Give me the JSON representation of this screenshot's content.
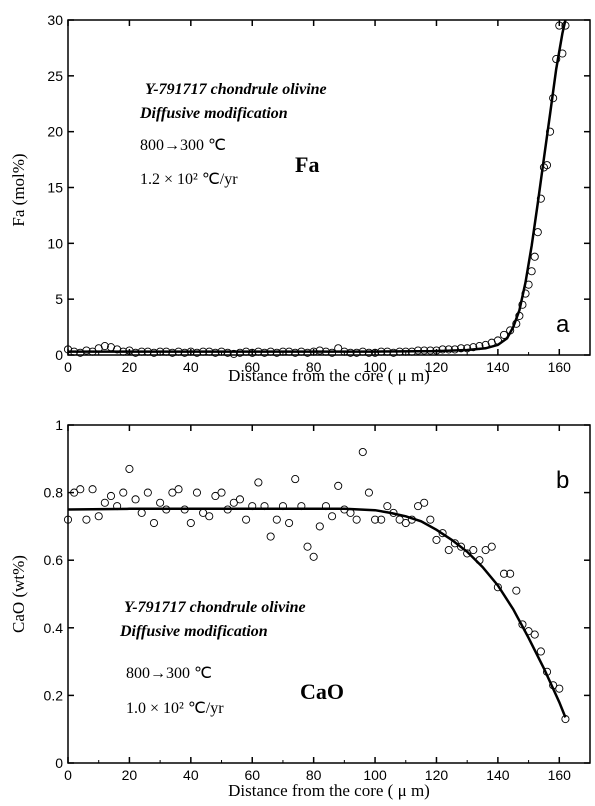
{
  "chart_data": [
    {
      "type": "scatter",
      "panel_letter": "a",
      "xlabel": "Distance from the core ( μ m)",
      "ylabel": "Fa (mol%)",
      "xlim": [
        0,
        170
      ],
      "ylim": [
        0,
        30
      ],
      "x_ticks": [
        "0",
        "20",
        "40",
        "60",
        "80",
        "100",
        "120",
        "140",
        "160"
      ],
      "y_ticks": [
        "0",
        "5",
        "10",
        "15",
        "20",
        "25",
        "30"
      ],
      "annotation": {
        "line1": "Y-791717 chondrule olivine",
        "line2": "Diffusive modification",
        "line3": "800→300 ℃",
        "line4": "1.2 × 10² ℃/yr",
        "species": "Fa"
      },
      "series": [
        {
          "kind": "model-curve",
          "x": [
            0,
            20,
            40,
            60,
            80,
            100,
            120,
            130,
            136,
            140,
            143,
            145,
            147,
            149,
            151,
            153,
            155,
            157,
            159,
            161,
            162
          ],
          "y": [
            0.3,
            0.3,
            0.3,
            0.3,
            0.3,
            0.3,
            0.35,
            0.45,
            0.6,
            0.9,
            1.5,
            2.5,
            4.0,
            6.5,
            9.8,
            13.6,
            17.6,
            21.6,
            25.6,
            28.8,
            30.0
          ]
        },
        {
          "kind": "measured-points",
          "x": [
            0,
            2,
            4,
            6,
            8,
            10,
            12,
            14,
            16,
            18,
            20,
            22,
            24,
            26,
            28,
            30,
            32,
            34,
            36,
            38,
            40,
            42,
            44,
            46,
            48,
            50,
            52,
            54,
            56,
            58,
            60,
            62,
            64,
            66,
            68,
            70,
            72,
            74,
            76,
            78,
            80,
            82,
            84,
            86,
            88,
            90,
            92,
            94,
            96,
            98,
            100,
            102,
            104,
            106,
            108,
            110,
            112,
            114,
            116,
            118,
            120,
            122,
            124,
            126,
            128,
            130,
            132,
            134,
            136,
            138,
            140,
            142,
            144,
            146,
            147,
            148,
            149,
            150,
            151,
            152,
            153,
            154,
            155,
            156,
            157,
            158,
            159,
            160,
            161,
            162
          ],
          "y": [
            0.5,
            0.3,
            0.2,
            0.4,
            0.3,
            0.6,
            0.8,
            0.7,
            0.5,
            0.3,
            0.4,
            0.2,
            0.3,
            0.3,
            0.2,
            0.3,
            0.3,
            0.2,
            0.3,
            0.2,
            0.3,
            0.2,
            0.3,
            0.3,
            0.2,
            0.3,
            0.2,
            0.1,
            0.2,
            0.3,
            0.2,
            0.3,
            0.2,
            0.3,
            0.2,
            0.3,
            0.3,
            0.2,
            0.3,
            0.2,
            0.3,
            0.4,
            0.3,
            0.2,
            0.6,
            0.3,
            0.2,
            0.2,
            0.3,
            0.2,
            0.2,
            0.3,
            0.3,
            0.2,
            0.3,
            0.3,
            0.3,
            0.4,
            0.4,
            0.4,
            0.4,
            0.5,
            0.5,
            0.5,
            0.6,
            0.6,
            0.7,
            0.8,
            0.9,
            1.1,
            1.3,
            1.8,
            2.2,
            2.8,
            3.5,
            4.5,
            5.5,
            6.3,
            7.5,
            8.8,
            11.0,
            14.0,
            16.8,
            17.0,
            20.0,
            23.0,
            26.5,
            29.5,
            27.0,
            29.5
          ]
        }
      ]
    },
    {
      "type": "scatter",
      "panel_letter": "b",
      "xlabel": "Distance from the core ( μ m)",
      "ylabel": "CaO (wt%)",
      "xlim": [
        0,
        170
      ],
      "ylim": [
        0,
        1
      ],
      "x_ticks": [
        "0",
        "20",
        "40",
        "60",
        "80",
        "100",
        "120",
        "140",
        "160"
      ],
      "y_ticks": [
        "0",
        "0.2",
        "0.4",
        "0.6",
        "0.8",
        "1"
      ],
      "annotation": {
        "line1": "Y-791717 chondrule olivine",
        "line2": "Diffusive modification",
        "line3": "800→300 ℃",
        "line4": "1.0 × 10² ℃/yr",
        "species": "CaO"
      },
      "series": [
        {
          "kind": "model-curve",
          "x": [
            0,
            20,
            40,
            60,
            80,
            90,
            100,
            105,
            110,
            115,
            120,
            125,
            130,
            135,
            140,
            145,
            150,
            155,
            160,
            162
          ],
          "y": [
            0.75,
            0.752,
            0.752,
            0.752,
            0.752,
            0.752,
            0.748,
            0.74,
            0.73,
            0.715,
            0.69,
            0.66,
            0.625,
            0.58,
            0.525,
            0.455,
            0.37,
            0.28,
            0.18,
            0.135
          ]
        },
        {
          "kind": "measured-points",
          "x": [
            0,
            2,
            4,
            6,
            8,
            10,
            12,
            14,
            16,
            18,
            20,
            22,
            24,
            26,
            28,
            30,
            32,
            34,
            36,
            38,
            40,
            42,
            44,
            46,
            48,
            50,
            52,
            54,
            56,
            58,
            60,
            62,
            64,
            66,
            68,
            70,
            72,
            74,
            76,
            78,
            80,
            82,
            84,
            86,
            88,
            90,
            92,
            94,
            96,
            98,
            100,
            102,
            104,
            106,
            108,
            110,
            112,
            114,
            116,
            118,
            120,
            122,
            124,
            126,
            128,
            130,
            132,
            134,
            136,
            138,
            140,
            142,
            144,
            146,
            148,
            150,
            152,
            154,
            156,
            158,
            160,
            162
          ],
          "y": [
            0.72,
            0.8,
            0.81,
            0.72,
            0.81,
            0.73,
            0.77,
            0.79,
            0.76,
            0.8,
            0.87,
            0.78,
            0.74,
            0.8,
            0.71,
            0.77,
            0.75,
            0.8,
            0.81,
            0.75,
            0.71,
            0.8,
            0.74,
            0.73,
            0.79,
            0.8,
            0.75,
            0.77,
            0.78,
            0.72,
            0.76,
            0.83,
            0.76,
            0.67,
            0.72,
            0.76,
            0.71,
            0.84,
            0.76,
            0.64,
            0.61,
            0.7,
            0.76,
            0.73,
            0.82,
            0.75,
            0.74,
            0.72,
            0.92,
            0.8,
            0.72,
            0.72,
            0.76,
            0.74,
            0.72,
            0.71,
            0.72,
            0.76,
            0.77,
            0.72,
            0.66,
            0.68,
            0.63,
            0.65,
            0.64,
            0.62,
            0.63,
            0.6,
            0.63,
            0.64,
            0.52,
            0.56,
            0.56,
            0.51,
            0.41,
            0.39,
            0.38,
            0.33,
            0.27,
            0.23,
            0.22,
            0.13
          ]
        }
      ]
    }
  ]
}
